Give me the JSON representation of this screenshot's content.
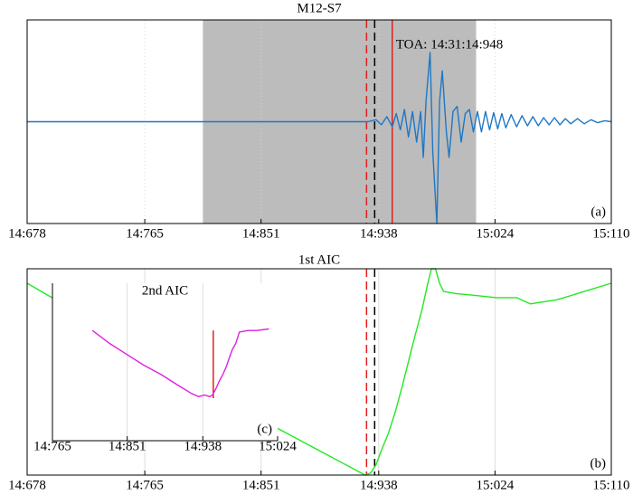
{
  "chart_data": [
    {
      "type": "line",
      "title": "M12-S7",
      "panel_label": "(a)",
      "annotation": "TOA: 14:31:14:948",
      "xlim": [
        678,
        1110
      ],
      "xticks": [
        {
          "value": 678,
          "label": "14:678"
        },
        {
          "value": 765,
          "label": "14:765"
        },
        {
          "value": 851,
          "label": "14:851"
        },
        {
          "value": 938,
          "label": "14:938"
        },
        {
          "value": 1024,
          "label": "15:024"
        },
        {
          "value": 1110,
          "label": "15:110"
        }
      ],
      "ylim": [
        -1,
        1
      ],
      "grid": "dotted",
      "span": [
        808,
        1010
      ],
      "span_color": "#bcbcbc",
      "vlines": [
        {
          "x": 929,
          "color": "#e02020",
          "style": "dashed"
        },
        {
          "x": 935,
          "color": "#000000",
          "style": "dashed"
        },
        {
          "x": 948,
          "color": "#e02020",
          "style": "solid"
        }
      ],
      "series": [
        {
          "color": "#1f77c4",
          "x": [
            678,
            930,
            936,
            940,
            944,
            948,
            951,
            954,
            957,
            960,
            963,
            966,
            969,
            971,
            973,
            976,
            978,
            981,
            983,
            985,
            988,
            990,
            993,
            996,
            999,
            1002,
            1005,
            1008,
            1011,
            1014,
            1017,
            1020,
            1023,
            1026,
            1029,
            1032,
            1036,
            1040,
            1044,
            1048,
            1052,
            1056,
            1060,
            1064,
            1068,
            1072,
            1076,
            1080,
            1085,
            1090,
            1095,
            1100,
            1105,
            1110
          ],
          "values": [
            0,
            0,
            0.02,
            -0.03,
            0.05,
            -0.05,
            0.08,
            -0.08,
            0.12,
            -0.15,
            0.1,
            -0.2,
            0.1,
            -0.35,
            0.2,
            0.68,
            -0.3,
            -1,
            0.2,
            0.5,
            -0.1,
            -0.35,
            0.1,
            0.15,
            -0.2,
            0.08,
            0.12,
            -0.1,
            0.1,
            -0.1,
            0.1,
            -0.08,
            0.09,
            -0.07,
            0.08,
            -0.06,
            0.07,
            -0.05,
            0.06,
            -0.04,
            0.05,
            -0.04,
            0.04,
            -0.03,
            0.04,
            -0.03,
            0.03,
            -0.02,
            0.03,
            -0.02,
            0.02,
            -0.01,
            0.01,
            0
          ]
        }
      ]
    },
    {
      "type": "line",
      "title": "1st AIC",
      "panel_label": "(b)",
      "xlim": [
        678,
        1110
      ],
      "xticks": [
        {
          "value": 678,
          "label": "14:678"
        },
        {
          "value": 765,
          "label": "14:765"
        },
        {
          "value": 851,
          "label": "14:851"
        },
        {
          "value": 938,
          "label": "14:938"
        },
        {
          "value": 1024,
          "label": "15:024"
        },
        {
          "value": 1110,
          "label": "15:110"
        }
      ],
      "ylim": [
        0,
        1
      ],
      "grid": "solid",
      "vlines": [
        {
          "x": 929,
          "color": "#e02020",
          "style": "dashed"
        },
        {
          "x": 935,
          "color": "#000000",
          "style": "dashed"
        }
      ],
      "series": [
        {
          "color": "#22e822",
          "x": [
            678,
            865,
            928,
            932,
            936,
            940,
            945,
            950,
            955,
            960,
            965,
            970,
            974,
            977,
            980,
            983,
            986,
            995,
            1010,
            1025,
            1040,
            1050,
            1070,
            1090,
            1110
          ],
          "values": [
            0.93,
            0.22,
            0,
            0.01,
            0.05,
            0.12,
            0.2,
            0.3,
            0.42,
            0.55,
            0.68,
            0.8,
            0.92,
            1,
            1,
            0.93,
            0.89,
            0.88,
            0.87,
            0.86,
            0.86,
            0.83,
            0.85,
            0.89,
            0.93
          ]
        }
      ]
    },
    {
      "type": "line",
      "title": "2nd AIC",
      "panel_label": "(c)",
      "xlim": [
        765,
        1024
      ],
      "xticks": [
        {
          "value": 765,
          "label": "14:765"
        },
        {
          "value": 851,
          "label": "14:851"
        },
        {
          "value": 938,
          "label": "14:938"
        },
        {
          "value": 1024,
          "label": "15:024"
        }
      ],
      "ylim": [
        0,
        1
      ],
      "grid": "solid",
      "vlines": [
        {
          "x": 950,
          "color": "#e02020",
          "style": "solid",
          "yrange": [
            0.27,
            0.7
          ]
        }
      ],
      "series": [
        {
          "color": "#e020e0",
          "x": [
            811,
            830,
            850,
            870,
            890,
            910,
            925,
            933,
            940,
            946,
            949,
            953,
            957,
            961,
            965,
            968,
            972,
            976,
            980,
            990,
            1000,
            1014
          ],
          "values": [
            0.7,
            0.62,
            0.55,
            0.48,
            0.42,
            0.35,
            0.3,
            0.28,
            0.29,
            0.28,
            0.29,
            0.33,
            0.38,
            0.42,
            0.47,
            0.52,
            0.58,
            0.62,
            0.69,
            0.7,
            0.7,
            0.71
          ]
        }
      ]
    }
  ]
}
